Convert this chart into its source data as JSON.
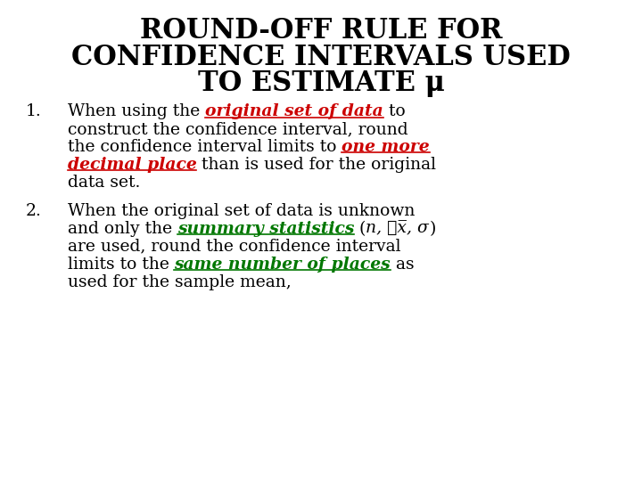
{
  "title_line1": "ROUND-OFF RULE FOR",
  "title_line2": "CONFIDENCE INTERVALS USED",
  "title_line3": "TO ESTIMATE μ",
  "title_fontsize": 22,
  "title_color": "#000000",
  "background_color": "#ffffff",
  "body_fontsize": 13.5,
  "item1_parts": [
    {
      "text": "When using the ",
      "color": "#000000",
      "style": "normal"
    },
    {
      "text": "original set of data",
      "color": "#cc0000",
      "style": "bolditalic_underline"
    },
    {
      "text": " to",
      "color": "#000000",
      "style": "normal"
    }
  ],
  "item1_line2": "construct the confidence interval, round",
  "item1_line3_parts": [
    {
      "text": "the confidence interval limits to ",
      "color": "#000000",
      "style": "normal"
    },
    {
      "text": "one more",
      "color": "#cc0000",
      "style": "bolditalic_underline"
    }
  ],
  "item1_line4_parts": [
    {
      "text": "decimal place",
      "color": "#cc0000",
      "style": "bolditalic_underline"
    },
    {
      "text": " than is used for the original",
      "color": "#000000",
      "style": "normal"
    }
  ],
  "item1_line5": "data set.",
  "item2_line1": "When the original set of data is unknown",
  "item2_line2_parts": [
    {
      "text": "and only the ",
      "color": "#000000",
      "style": "normal"
    },
    {
      "text": "summary statistics",
      "color": "#007700",
      "style": "bolditalic_underline"
    },
    {
      "text": " (",
      "color": "#000000",
      "style": "normal"
    },
    {
      "text": "n, ͞x̅, σ",
      "color": "#000000",
      "style": "italic"
    },
    {
      "text": ")",
      "color": "#000000",
      "style": "normal"
    }
  ],
  "item2_line3": "are used, round the confidence interval",
  "item2_line4_parts": [
    {
      "text": "limits to the ",
      "color": "#000000",
      "style": "normal"
    },
    {
      "text": "same number of places",
      "color": "#007700",
      "style": "bolditalic_underline"
    },
    {
      "text": " as",
      "color": "#000000",
      "style": "normal"
    }
  ],
  "item2_line5": "used for the sample mean,"
}
